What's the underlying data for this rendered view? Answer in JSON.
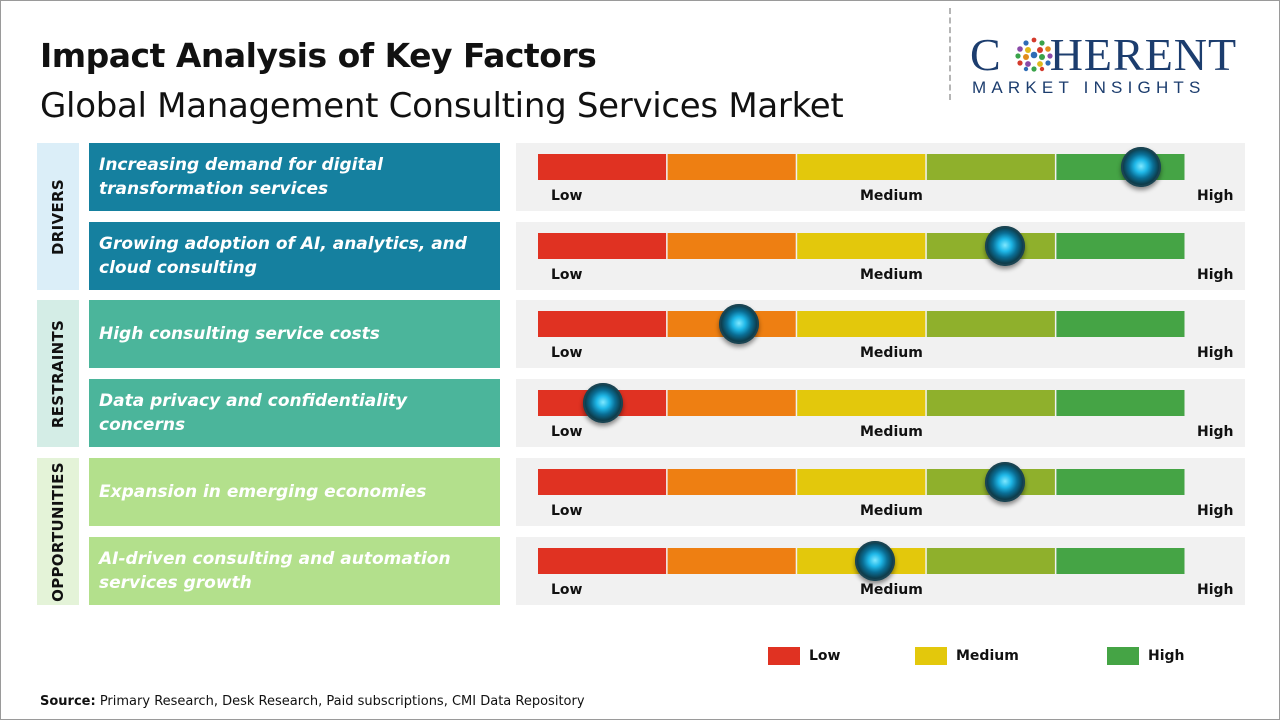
{
  "header": {
    "title": "Impact Analysis of Key Factors",
    "subtitle": "Global Management Consulting Services Market"
  },
  "logo": {
    "main_left": "C",
    "main_right": "HERENT",
    "sub": "MARKET INSIGHTS"
  },
  "groups": [
    {
      "label": "DRIVERS",
      "color": "#dbeef8"
    },
    {
      "label": "RESTRAINTS",
      "color": "#d4ede6"
    },
    {
      "label": "OPPORTUNITIES",
      "color": "#e4f3d8"
    }
  ],
  "scale_labels": {
    "low": "Low",
    "medium": "Medium",
    "high": "High"
  },
  "segment_colors": [
    "#e03222",
    "#ee7f12",
    "#e3c80c",
    "#8fb02c",
    "#45a445"
  ],
  "chart_data": {
    "type": "table",
    "title": "Impact Analysis of Key Factors",
    "subtitle": "Global Management Consulting Services Market",
    "scale": [
      "Low",
      "Medium",
      "High"
    ],
    "scale_range": [
      0,
      1
    ],
    "factors": [
      {
        "group": "DRIVERS",
        "factor": "Increasing demand for digital transformation services",
        "impact": 0.93,
        "color": "#15809f"
      },
      {
        "group": "DRIVERS",
        "factor": "Growing adoption of AI, analytics, and cloud consulting",
        "impact": 0.72,
        "color": "#15809f"
      },
      {
        "group": "RESTRAINTS",
        "factor": "High consulting service costs",
        "impact": 0.31,
        "color": "#4bb59b"
      },
      {
        "group": "RESTRAINTS",
        "factor": "Data privacy and confidentiality concerns",
        "impact": 0.1,
        "color": "#4bb59b"
      },
      {
        "group": "OPPORTUNITIES",
        "factor": "Expansion in emerging economies",
        "impact": 0.72,
        "color": "#b3e08c"
      },
      {
        "group": "OPPORTUNITIES",
        "factor": "AI-driven consulting and automation services growth",
        "impact": 0.52,
        "color": "#b3e08c"
      }
    ],
    "legend": [
      {
        "label": "Low",
        "color": "#e03222"
      },
      {
        "label": "Medium",
        "color": "#e3c80c"
      },
      {
        "label": "High",
        "color": "#45a445"
      }
    ]
  },
  "source": {
    "label": "Source:",
    "text": " Primary Research, Desk Research, Paid subscriptions, CMI Data Repository"
  }
}
